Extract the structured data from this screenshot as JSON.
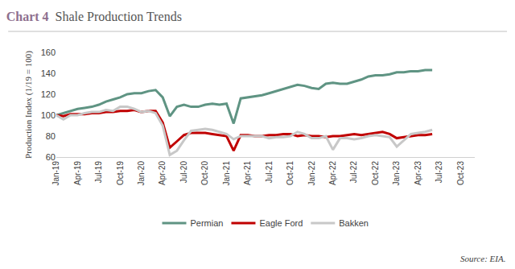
{
  "chart_data": {
    "type": "line",
    "title_prefix": "Chart 4",
    "title": "Shale Production Trends",
    "source": "Source: EIA.",
    "y_label": "Production Index (1/19 = 100)",
    "categories": [
      "Jan-19",
      null,
      null,
      "Apr-19",
      null,
      null,
      "Jul-19",
      null,
      null,
      "Oct-19",
      null,
      null,
      "Jan-20",
      null,
      null,
      "Apr-20",
      null,
      null,
      "Jul-20",
      null,
      null,
      "Oct-20",
      null,
      null,
      "Jan-21",
      null,
      null,
      "Apr-21",
      null,
      null,
      "Jul-21",
      null,
      null,
      "Oct-21",
      null,
      null,
      "Jan-22",
      null,
      null,
      "Apr-22",
      null,
      null,
      "Jul-22",
      null,
      null,
      "Oct-22",
      null,
      null,
      "Jan-23",
      null,
      null,
      "Apr-23",
      null,
      null,
      "Jul-23",
      null,
      null,
      "Oct-23",
      null,
      null
    ],
    "series": [
      {
        "name": "Permian",
        "color": "#5f9483",
        "values": [
          100,
          102,
          104,
          106,
          107,
          108,
          110,
          113,
          115,
          117,
          120,
          121,
          121,
          123,
          124,
          117,
          99,
          108,
          110,
          108,
          108,
          110,
          111,
          110,
          111,
          92,
          116,
          117,
          118,
          119,
          121,
          123,
          125,
          127,
          129,
          128,
          126,
          125,
          130,
          131,
          130,
          130,
          132,
          134,
          137,
          138,
          138,
          139,
          141,
          141,
          142,
          142,
          143,
          143,
          null,
          null,
          null,
          null,
          null,
          null
        ]
      },
      {
        "name": "Eagle Ford",
        "color": "#c00000",
        "values": [
          100,
          99,
          101,
          101,
          101,
          102,
          102,
          103,
          103,
          104,
          104,
          105,
          103,
          104,
          104,
          93,
          69,
          75,
          81,
          83,
          83,
          83,
          82,
          81,
          80,
          66,
          81,
          81,
          80,
          80,
          81,
          81,
          82,
          82,
          80,
          81,
          80,
          80,
          79,
          80,
          80,
          81,
          82,
          81,
          82,
          83,
          84,
          82,
          78,
          79,
          80,
          81,
          81,
          82,
          null,
          null,
          null,
          null,
          null,
          null
        ]
      },
      {
        "name": "Bakken",
        "color": "#c8c8c8",
        "values": [
          100,
          96,
          100,
          100,
          102,
          103,
          103,
          105,
          104,
          108,
          108,
          106,
          103,
          104,
          102,
          90,
          62,
          66,
          76,
          85,
          86,
          87,
          86,
          84,
          82,
          77,
          80,
          80,
          80,
          80,
          78,
          79,
          79,
          80,
          84,
          82,
          78,
          78,
          80,
          67,
          78,
          78,
          77,
          78,
          80,
          81,
          80,
          79,
          70,
          76,
          82,
          83,
          84,
          86,
          null,
          null,
          null,
          null,
          null,
          null
        ]
      }
    ],
    "ylim": [
      60,
      160
    ],
    "yticks": [
      60,
      80,
      100,
      120,
      140,
      160
    ],
    "grid": false,
    "legend": "bottom"
  }
}
